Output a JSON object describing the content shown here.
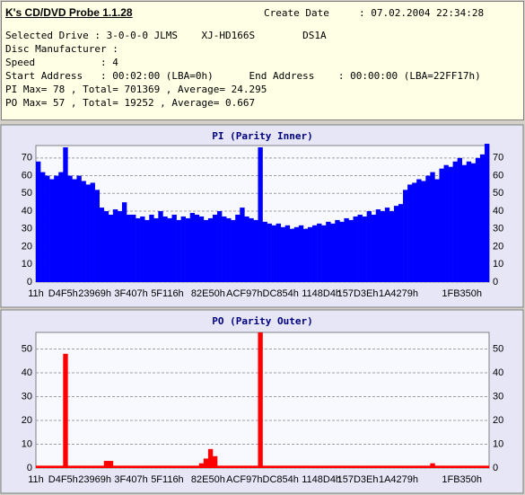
{
  "header": {
    "title": "K's CD/DVD Probe 1.1.28",
    "create_date_label": "Create Date",
    "create_date": ": 07.02.2004 22:34:28",
    "lines": [
      "Selected Drive : 3-0-0-0 JLMS    XJ-HD166S        DS1A",
      "Disc Manufacturer :",
      "Speed           : 4",
      "Start Address   : 00:02:00 (LBA=0h)      End Address    : 00:00:00 (LBA=22FF17h)",
      "PI Max= 78 , Total= 701369 , Average= 24.295",
      "PO Max= 57 , Total= 19252 , Average= 0.667"
    ]
  },
  "chart_data": [
    {
      "type": "bar",
      "title": "PI (Parity Inner)",
      "color": "#0000ff",
      "grid": true,
      "ylim": [
        0,
        77
      ],
      "yticks": [
        0,
        10,
        20,
        30,
        40,
        50,
        60,
        70
      ],
      "categories": [
        "11h",
        null,
        null,
        null,
        null,
        null,
        "D4F5h",
        null,
        null,
        null,
        null,
        null,
        null,
        "23969h",
        null,
        null,
        null,
        null,
        null,
        null,
        null,
        "3F407h",
        null,
        null,
        null,
        null,
        null,
        null,
        null,
        "5F116h",
        null,
        null,
        null,
        null,
        null,
        null,
        null,
        null,
        "82E50h",
        null,
        null,
        null,
        null,
        null,
        null,
        null,
        "ACF97h",
        null,
        null,
        null,
        null,
        null,
        null,
        null,
        "DC854h",
        null,
        null,
        null,
        null,
        null,
        null,
        null,
        null,
        "1148D4h",
        null,
        null,
        null,
        null,
        null,
        null,
        null,
        "157D3Eh",
        null,
        null,
        null,
        null,
        null,
        null,
        null,
        null,
        "1A4279h",
        null,
        null,
        null,
        null,
        null,
        null,
        null,
        null,
        null,
        null,
        null,
        null,
        null,
        "1FB350h",
        null,
        null,
        null,
        null,
        null
      ],
      "values": [
        68,
        62,
        60,
        58,
        60,
        62,
        76,
        60,
        58,
        60,
        57,
        55,
        56,
        52,
        42,
        40,
        38,
        41,
        40,
        45,
        38,
        38,
        36,
        37,
        35,
        38,
        36,
        40,
        37,
        36,
        38,
        35,
        37,
        36,
        39,
        38,
        37,
        35,
        36,
        38,
        40,
        37,
        36,
        35,
        38,
        42,
        37,
        36,
        35,
        76,
        34,
        33,
        32,
        33,
        31,
        32,
        30,
        31,
        32,
        30,
        31,
        32,
        33,
        32,
        34,
        33,
        35,
        34,
        36,
        35,
        37,
        38,
        37,
        40,
        38,
        41,
        40,
        42,
        40,
        43,
        44,
        52,
        55,
        56,
        58,
        57,
        60,
        62,
        58,
        64,
        66,
        65,
        68,
        70,
        66,
        68,
        67,
        70,
        72,
        78
      ]
    },
    {
      "type": "bar",
      "title": "PO (Parity Outer)",
      "color": "#ff0000",
      "grid": true,
      "ylim": [
        0,
        57
      ],
      "yticks": [
        0,
        10,
        20,
        30,
        40,
        50
      ],
      "categories": [
        "11h",
        null,
        null,
        null,
        null,
        null,
        "D4F5h",
        null,
        null,
        null,
        null,
        null,
        null,
        "23969h",
        null,
        null,
        null,
        null,
        null,
        null,
        null,
        "3F407h",
        null,
        null,
        null,
        null,
        null,
        null,
        null,
        "5F116h",
        null,
        null,
        null,
        null,
        null,
        null,
        null,
        null,
        "82E50h",
        null,
        null,
        null,
        null,
        null,
        null,
        null,
        "ACF97h",
        null,
        null,
        null,
        null,
        null,
        null,
        null,
        "DC854h",
        null,
        null,
        null,
        null,
        null,
        null,
        null,
        null,
        "1148D4h",
        null,
        null,
        null,
        null,
        null,
        null,
        null,
        "157D3Eh",
        null,
        null,
        null,
        null,
        null,
        null,
        null,
        null,
        "1A4279h",
        null,
        null,
        null,
        null,
        null,
        null,
        null,
        null,
        null,
        null,
        null,
        null,
        null,
        "1FB350h",
        null,
        null,
        null,
        null,
        null
      ],
      "values": [
        1,
        1,
        1,
        1,
        1,
        1,
        48,
        1,
        1,
        1,
        1,
        1,
        1,
        1,
        1,
        3,
        3,
        1,
        1,
        1,
        1,
        1,
        1,
        1,
        1,
        1,
        1,
        1,
        1,
        1,
        1,
        1,
        1,
        1,
        1,
        1,
        2,
        4,
        8,
        5,
        1,
        1,
        1,
        1,
        1,
        1,
        1,
        1,
        1,
        57,
        1,
        1,
        1,
        1,
        1,
        1,
        1,
        1,
        1,
        1,
        1,
        1,
        1,
        1,
        1,
        1,
        1,
        1,
        1,
        1,
        1,
        1,
        1,
        1,
        1,
        1,
        1,
        1,
        1,
        1,
        1,
        1,
        1,
        1,
        1,
        1,
        1,
        2,
        1,
        1,
        1,
        1,
        1,
        1,
        1,
        1,
        1,
        1,
        1,
        1
      ]
    }
  ]
}
